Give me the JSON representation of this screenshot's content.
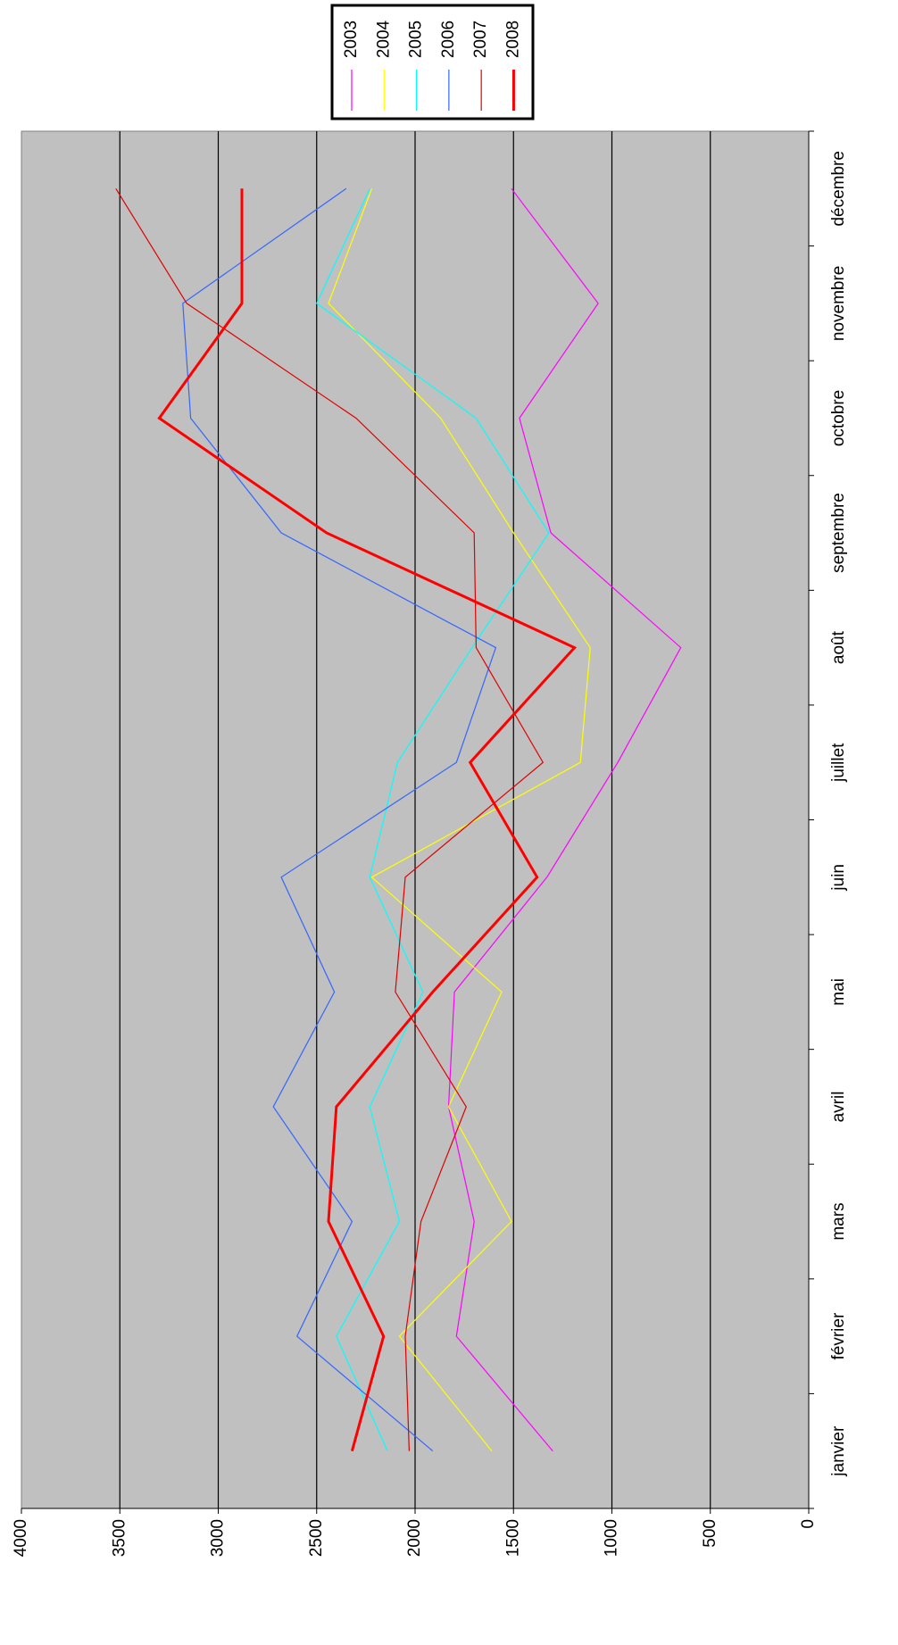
{
  "chart_data": {
    "type": "line",
    "title": "",
    "xlabel": "",
    "ylabel": "",
    "orientation": "rotated-90-ccw",
    "categories": [
      "janvier",
      "février",
      "mars",
      "avril",
      "mai",
      "juin",
      "juillet",
      "août",
      "septembre",
      "octobre",
      "novembre",
      "décembre"
    ],
    "ylim": [
      0,
      4000
    ],
    "y_ticks": [
      "0",
      "500",
      "1000",
      "1500",
      "2000",
      "2500",
      "3000",
      "3500",
      "4000"
    ],
    "grid": true,
    "legend_position": "top-right",
    "plot_background": "#c0c0c0",
    "series": [
      {
        "name": "2003",
        "color": "#ff00ff",
        "values": [
          1300,
          1790,
          1700,
          1830,
          1800,
          1330,
          970,
          650,
          1310,
          1470,
          1070,
          1510
        ]
      },
      {
        "name": "2004",
        "color": "#ffff00",
        "values": [
          1610,
          2080,
          1510,
          1830,
          1560,
          2220,
          1160,
          1110,
          1500,
          1870,
          2440,
          2220
        ]
      },
      {
        "name": "2005",
        "color": "#00ffff",
        "values": [
          2140,
          2400,
          2080,
          2230,
          1960,
          2230,
          2090,
          1710,
          1320,
          1690,
          2500,
          2230
        ]
      },
      {
        "name": "2006",
        "color": "#3366ff",
        "values": [
          1910,
          2600,
          2320,
          2720,
          2410,
          2680,
          1790,
          1590,
          2680,
          3140,
          3180,
          2350
        ]
      },
      {
        "name": "2007",
        "color": "#e00000",
        "values": [
          2030,
          2050,
          1970,
          1740,
          2100,
          2050,
          1350,
          1690,
          1700,
          2300,
          3160,
          3520
        ]
      },
      {
        "name": "2008",
        "color": "#ff0000",
        "width": 3,
        "values": [
          2320,
          2160,
          2440,
          2400,
          1910,
          1380,
          1720,
          1190,
          2450,
          3300,
          2880,
          2880
        ]
      }
    ]
  }
}
